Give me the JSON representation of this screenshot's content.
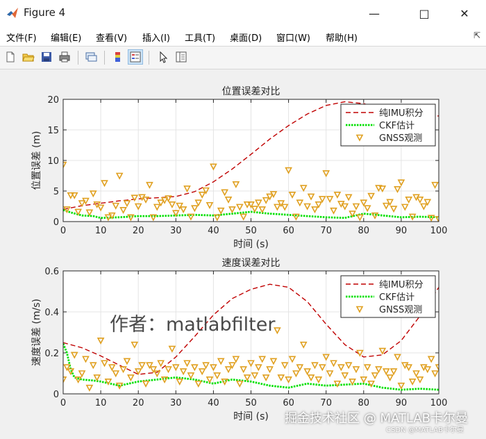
{
  "window": {
    "title": "Figure 4"
  },
  "menu": [
    "文件(F)",
    "编辑(E)",
    "查看(V)",
    "插入(I)",
    "工具(T)",
    "桌面(D)",
    "窗口(W)",
    "帮助(H)"
  ],
  "colors": {
    "imu": "#c00000",
    "ckf": "#00e000",
    "gnss": "#e0a020"
  },
  "toolbar_icons": [
    "new-figure-icon",
    "open-file-icon",
    "save-icon",
    "print-icon",
    "link-plot-icon",
    "colorbar-icon",
    "legend-icon",
    "pointer-icon",
    "property-inspector-icon"
  ],
  "watermarks": {
    "author": "作者：matlabfilter",
    "site": "掘金技术社区 @ MATLAB卡尔曼",
    "csdn": "CSDN @MATLAB卡尔曼"
  },
  "chart_data": [
    {
      "type": "line",
      "title": "位置误差对比",
      "xlabel": "时间 (s)",
      "ylabel": "位置误差 (m)",
      "xlim": [
        0,
        100
      ],
      "ylim": [
        0,
        20
      ],
      "xticks": [
        0,
        10,
        20,
        30,
        40,
        50,
        60,
        70,
        80,
        90,
        100
      ],
      "yticks": [
        0,
        5,
        10,
        15,
        20
      ],
      "grid": true,
      "legend_position": "top-right",
      "series": [
        {
          "name": "纯IMU积分",
          "style": "dashed",
          "x": [
            0,
            5,
            10,
            15,
            20,
            25,
            30,
            35,
            40,
            45,
            50,
            55,
            60,
            65,
            70,
            75,
            80,
            85,
            90,
            95,
            100
          ],
          "y": [
            2.0,
            2.6,
            3.0,
            3.4,
            3.7,
            3.9,
            4.1,
            4.9,
            6.5,
            8.6,
            11.0,
            13.5,
            15.7,
            17.6,
            19.0,
            19.6,
            19.3,
            18.4,
            17.5,
            16.8,
            17.3
          ]
        },
        {
          "name": "CKF估计",
          "style": "dotted",
          "x": [
            0,
            2,
            5,
            8,
            10,
            15,
            20,
            25,
            30,
            35,
            40,
            45,
            50,
            55,
            60,
            65,
            70,
            75,
            80,
            85,
            90,
            95,
            100
          ],
          "y": [
            1.9,
            1.5,
            1.0,
            0.9,
            0.6,
            0.7,
            0.9,
            0.9,
            1.0,
            1.1,
            1.0,
            1.3,
            1.6,
            1.3,
            1.1,
            0.9,
            0.7,
            0.6,
            1.3,
            1.0,
            0.7,
            0.8,
            0.7
          ]
        },
        {
          "name": "GNSS观测",
          "style": "markers",
          "x": [
            0,
            1,
            2,
            3,
            4,
            5,
            6,
            7,
            8,
            9,
            10,
            11,
            12,
            13,
            14,
            15,
            16,
            17,
            18,
            19,
            20,
            21,
            22,
            23,
            24,
            25,
            26,
            27,
            28,
            29,
            30,
            31,
            32,
            33,
            34,
            35,
            36,
            37,
            38,
            39,
            40,
            41,
            42,
            43,
            44,
            45,
            46,
            47,
            48,
            49,
            50,
            51,
            52,
            53,
            54,
            55,
            56,
            57,
            58,
            59,
            60,
            61,
            62,
            63,
            64,
            65,
            66,
            67,
            68,
            69,
            70,
            71,
            72,
            73,
            74,
            75,
            76,
            77,
            78,
            79,
            80,
            81,
            82,
            83,
            84,
            85,
            86,
            87,
            88,
            89,
            90,
            91,
            92,
            93,
            94,
            95,
            96,
            97,
            98,
            99,
            100
          ],
          "y": [
            9.3,
            2.0,
            4.3,
            4.3,
            1.6,
            3.0,
            3.4,
            1.5,
            4.6,
            2.8,
            2.3,
            6.3,
            0.7,
            1.0,
            2.6,
            7.5,
            1.9,
            3.0,
            0.7,
            3.9,
            2.5,
            4.0,
            3.6,
            6.0,
            0.7,
            2.4,
            3.1,
            3.5,
            3.8,
            2.8,
            1.4,
            2.6,
            2.0,
            5.4,
            0.8,
            2.2,
            3.1,
            4.4,
            5.1,
            2.7,
            9.0,
            0.7,
            1.8,
            4.8,
            3.6,
            2.0,
            6.1,
            2.4,
            0.8,
            2.8,
            2.8,
            2.1,
            3.1,
            2.0,
            3.5,
            4.1,
            4.5,
            2.4,
            3.0,
            2.4,
            8.4,
            4.4,
            0.8,
            3.1,
            5.5,
            2.5,
            4.1,
            2.0,
            2.8,
            3.7,
            7.9,
            3.7,
            1.8,
            4.4,
            2.9,
            2.5,
            4.0,
            1.3,
            2.5,
            0.7,
            3.1,
            2.2,
            4.2,
            1.0,
            5.5,
            5.4,
            2.6,
            3.2,
            2.1,
            5.3,
            6.4,
            2.4,
            3.6,
            0.8,
            4.0,
            3.6,
            2.5,
            3.2,
            0.6,
            6.0,
            0.4
          ]
        }
      ]
    },
    {
      "type": "line",
      "title": "速度误差对比",
      "xlabel": "时间 (s)",
      "ylabel": "速度误差 (m/s)",
      "xlim": [
        0,
        100
      ],
      "ylim": [
        0,
        0.6
      ],
      "xticks": [
        0,
        10,
        20,
        30,
        40,
        50,
        60,
        70,
        80,
        90,
        100
      ],
      "yticks": [
        0,
        0.2,
        0.4,
        0.6
      ],
      "grid": true,
      "legend_position": "top-right",
      "series": [
        {
          "name": "纯IMU积分",
          "style": "dashed",
          "x": [
            0,
            5,
            10,
            15,
            20,
            25,
            30,
            35,
            40,
            45,
            50,
            55,
            60,
            65,
            70,
            75,
            80,
            85,
            90,
            95,
            100
          ],
          "y": [
            0.25,
            0.225,
            0.185,
            0.14,
            0.095,
            0.105,
            0.18,
            0.28,
            0.385,
            0.465,
            0.51,
            0.535,
            0.52,
            0.45,
            0.34,
            0.24,
            0.18,
            0.19,
            0.26,
            0.38,
            0.52
          ]
        },
        {
          "name": "CKF估计",
          "style": "dotted",
          "x": [
            0,
            1,
            2,
            3,
            5,
            8,
            10,
            15,
            20,
            25,
            30,
            35,
            40,
            45,
            50,
            55,
            60,
            65,
            70,
            75,
            80,
            85,
            90,
            95,
            100
          ],
          "y": [
            0.245,
            0.2,
            0.12,
            0.08,
            0.07,
            0.065,
            0.06,
            0.04,
            0.06,
            0.07,
            0.08,
            0.07,
            0.05,
            0.07,
            0.06,
            0.04,
            0.03,
            0.05,
            0.04,
            0.045,
            0.05,
            0.03,
            0.02,
            0.025,
            0.02
          ]
        },
        {
          "name": "GNSS观测",
          "style": "markers",
          "x": [
            0,
            1,
            2,
            3,
            4,
            5,
            6,
            7,
            8,
            9,
            10,
            11,
            12,
            13,
            14,
            15,
            16,
            17,
            18,
            19,
            20,
            21,
            22,
            23,
            24,
            25,
            26,
            27,
            28,
            29,
            30,
            31,
            32,
            33,
            34,
            35,
            36,
            37,
            38,
            39,
            40,
            41,
            42,
            43,
            44,
            45,
            46,
            47,
            48,
            49,
            50,
            51,
            52,
            53,
            54,
            55,
            56,
            57,
            58,
            59,
            60,
            61,
            62,
            63,
            64,
            65,
            66,
            67,
            68,
            69,
            70,
            71,
            72,
            73,
            74,
            75,
            76,
            77,
            78,
            79,
            80,
            81,
            82,
            83,
            84,
            85,
            86,
            87,
            88,
            89,
            90,
            91,
            92,
            93,
            94,
            95,
            96,
            97,
            98,
            99,
            100
          ],
          "y": [
            0.07,
            0.13,
            0.11,
            0.19,
            0.07,
            0.1,
            0.17,
            0.03,
            0.14,
            0.08,
            0.26,
            0.15,
            0.06,
            0.13,
            0.1,
            0.04,
            0.12,
            0.16,
            0.08,
            0.24,
            0.11,
            0.14,
            0.05,
            0.14,
            0.12,
            0.1,
            0.15,
            0.07,
            0.12,
            0.22,
            0.13,
            0.06,
            0.11,
            0.15,
            0.09,
            0.13,
            0.05,
            0.11,
            0.14,
            0.07,
            0.13,
            0.09,
            0.16,
            0.06,
            0.12,
            0.14,
            0.17,
            0.05,
            0.12,
            0.08,
            0.15,
            0.09,
            0.13,
            0.17,
            0.08,
            0.12,
            0.16,
            0.31,
            0.08,
            0.14,
            0.07,
            0.17,
            0.1,
            0.13,
            0.24,
            0.11,
            0.08,
            0.14,
            0.07,
            0.13,
            0.18,
            0.1,
            0.15,
            0.05,
            0.13,
            0.09,
            0.14,
            0.06,
            0.12,
            0.2,
            0.07,
            0.13,
            0.05,
            0.09,
            0.12,
            0.21,
            0.11,
            0.08,
            0.11,
            0.18,
            0.04,
            0.14,
            0.13,
            0.06,
            0.1,
            0.07,
            0.13,
            0.12,
            0.17,
            0.1,
            0.13
          ]
        }
      ]
    }
  ]
}
